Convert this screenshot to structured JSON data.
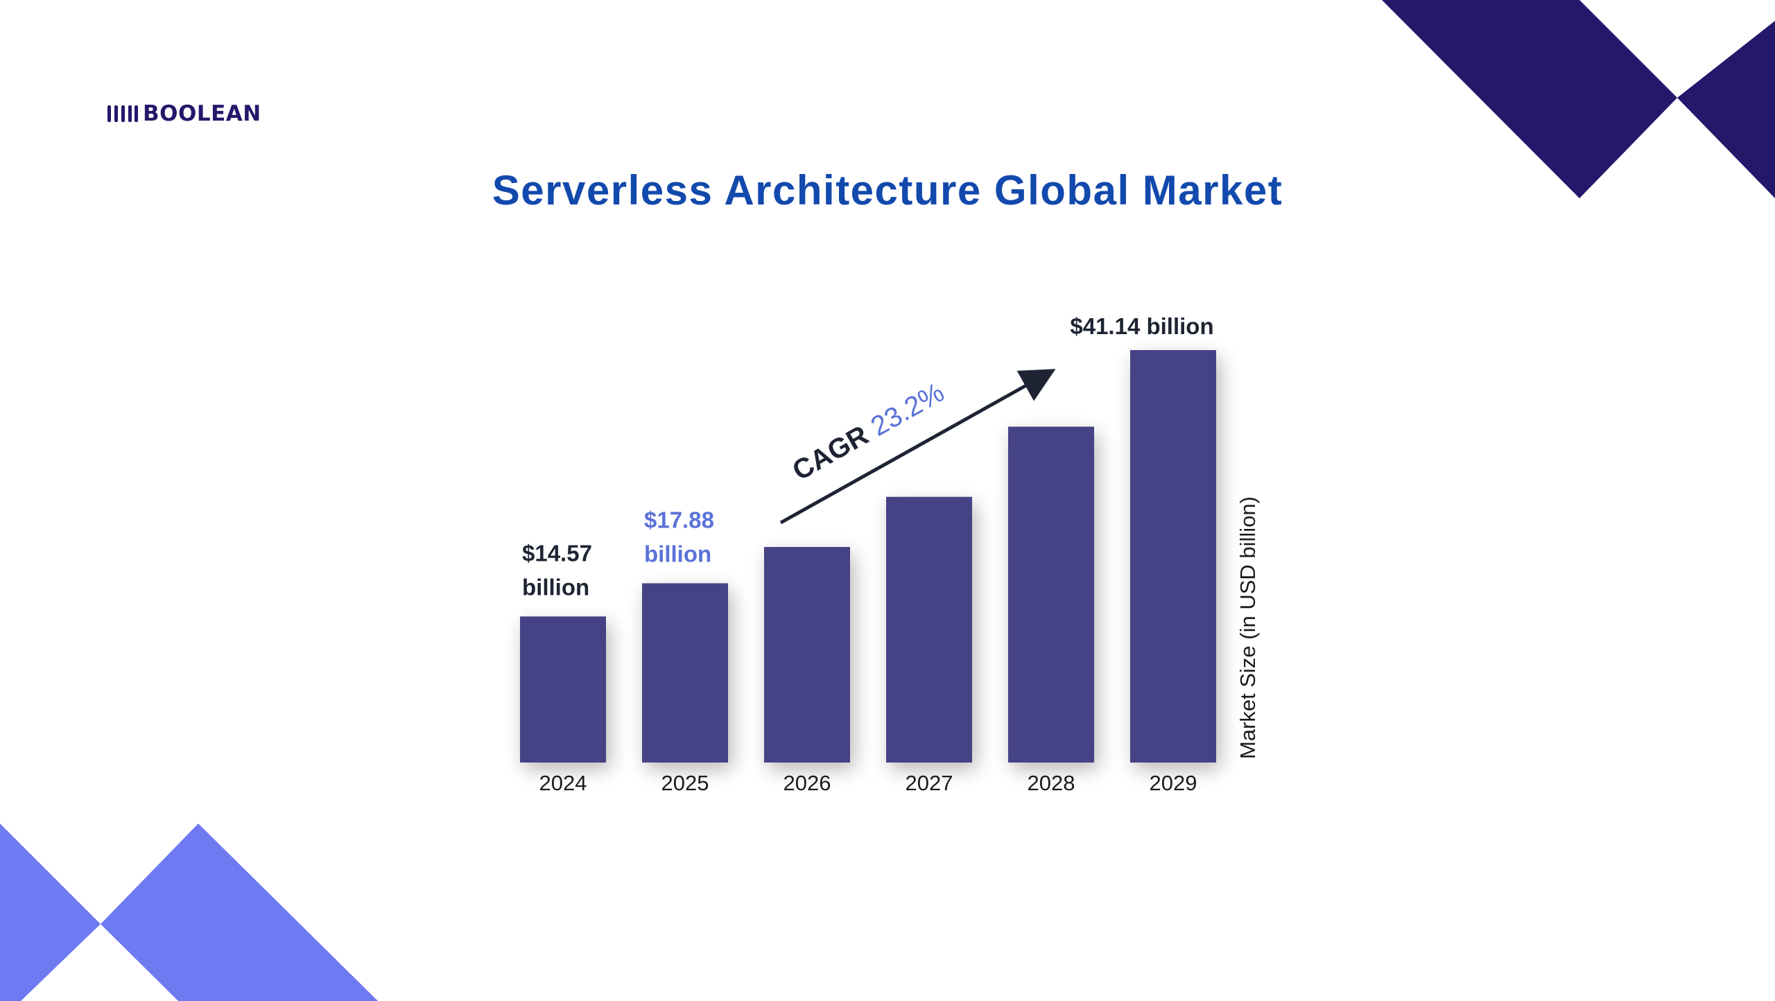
{
  "brand": {
    "name": "BOOLEAN",
    "color": "#23186a"
  },
  "title": "Serverless Architecture Global Market",
  "colors": {
    "bar": "#454386",
    "dark_text": "#1e2433",
    "highlight_text": "#5b72d8",
    "title": "#1249ad",
    "deco_dark": "#23186a",
    "deco_light": "#6f7af2"
  },
  "cagr": {
    "prefix": "CAGR",
    "value": "23.2%"
  },
  "chart_data": {
    "type": "bar",
    "title": "Serverless Architecture Global Market",
    "categories": [
      "2024",
      "2025",
      "2026",
      "2027",
      "2028",
      "2029"
    ],
    "values": [
      14.57,
      17.88,
      21.5,
      26.5,
      33.5,
      41.14
    ],
    "value_labels": [
      {
        "index": 0,
        "lines": [
          "$14.57",
          "billion"
        ],
        "style": "dark"
      },
      {
        "index": 1,
        "lines": [
          "$17.88",
          "billion"
        ],
        "style": "highlight"
      },
      {
        "index": 5,
        "lines": [
          "$41.14 billion"
        ],
        "style": "dark"
      }
    ],
    "xlabel": "",
    "ylabel": "Market Size (in USD billion)",
    "ylim": [
      0,
      41.14
    ],
    "unit": "USD billion",
    "grid": false,
    "legend": "none",
    "annotation": "CAGR 23.2%"
  }
}
